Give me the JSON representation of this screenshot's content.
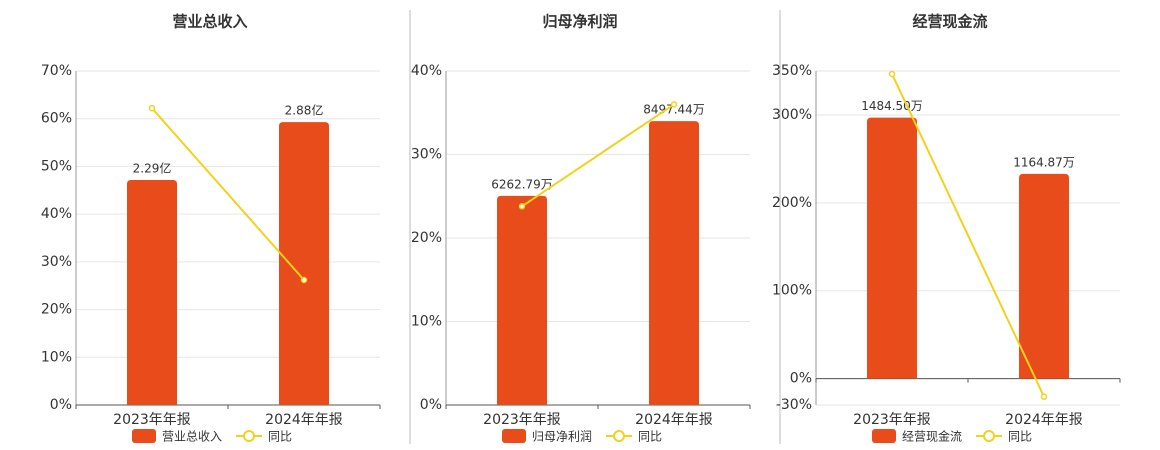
{
  "chart_data": [
    {
      "type": "bar",
      "title": "营业总收入",
      "categories": [
        "2023年年报",
        "2024年年报"
      ],
      "ylim": [
        0,
        70
      ],
      "yticks": [
        {
          "value": 0,
          "label": "0%"
        },
        {
          "value": 10,
          "label": "10%"
        },
        {
          "value": 20,
          "label": "20%"
        },
        {
          "value": 30,
          "label": "30%"
        },
        {
          "value": 40,
          "label": "40%"
        },
        {
          "value": 50,
          "label": "50%"
        },
        {
          "value": 60,
          "label": "60%"
        },
        {
          "value": 70,
          "label": "70%"
        }
      ],
      "y2lim": [
        0,
        3.4
      ],
      "grid": true,
      "series": [
        {
          "name": "营业总收入",
          "type": "bar",
          "color": "#e84c1a",
          "axis": "y2",
          "values": [
            2.29,
            2.88
          ],
          "value_labels": [
            "2.29亿",
            "2.88亿"
          ]
        },
        {
          "name": "同比",
          "type": "line",
          "color": "#f2d21c",
          "values": [
            62.2,
            26.2
          ]
        }
      ]
    },
    {
      "type": "bar",
      "title": "归母净利润",
      "categories": [
        "2023年年报",
        "2024年年报"
      ],
      "ylim": [
        0,
        40
      ],
      "yticks": [
        {
          "value": 0,
          "label": "0%"
        },
        {
          "value": 10,
          "label": "10%"
        },
        {
          "value": 20,
          "label": "20%"
        },
        {
          "value": 30,
          "label": "30%"
        },
        {
          "value": 40,
          "label": "40%"
        }
      ],
      "y2lim": [
        0,
        10000
      ],
      "grid": true,
      "series": [
        {
          "name": "归母净利润",
          "type": "bar",
          "color": "#e84c1a",
          "axis": "y2",
          "values": [
            6262.79,
            8497.44
          ],
          "value_labels": [
            "6262.79万",
            "8497.44万"
          ]
        },
        {
          "name": "同比",
          "type": "line",
          "color": "#f2d21c",
          "values": [
            23.8,
            36
          ]
        }
      ]
    },
    {
      "type": "bar",
      "title": "经营现金流",
      "categories": [
        "2023年年报",
        "2024年年报"
      ],
      "ylim": [
        -30,
        350
      ],
      "yticks": [
        {
          "value": -30,
          "label": "-30%"
        },
        {
          "value": 0,
          "label": "0%"
        },
        {
          "value": 100,
          "label": "100%"
        },
        {
          "value": 200,
          "label": "200%"
        },
        {
          "value": 300,
          "label": "300%"
        },
        {
          "value": 350,
          "label": "350%"
        }
      ],
      "y2lim": [
        -150,
        1750
      ],
      "grid": true,
      "series": [
        {
          "name": "经营现金流",
          "type": "bar",
          "color": "#e84c1a",
          "axis": "y2",
          "values": [
            1484.5,
            1164.87
          ],
          "value_labels": [
            "1484.50万",
            "1164.87万"
          ]
        },
        {
          "name": "同比",
          "type": "line",
          "color": "#f2d21c",
          "values": [
            346.6,
            -20.5
          ]
        }
      ]
    }
  ]
}
